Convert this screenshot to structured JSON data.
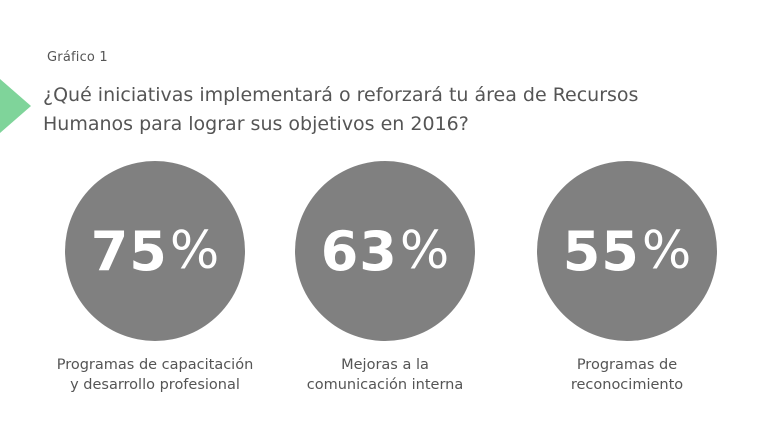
{
  "header": {
    "figure_label": "Gráfico 1",
    "question": "¿Qué iniciativas implementará o reforzará tu área de Recursos Humanos para lograr sus objetivos en 2016?"
  },
  "colors": {
    "circle": "#808080",
    "accent_arrow": "#7fd49a",
    "text": "#555555"
  },
  "chart_data": {
    "type": "bar",
    "title": "¿Qué iniciativas implementará o reforzará tu área de Recursos Humanos para lograr sus objetivos en 2016?",
    "categories": [
      "Programas de capacitación y desarrollo profesional",
      "Mejoras a la comunicación interna",
      "Programas de reconocimiento"
    ],
    "values": [
      75,
      63,
      55
    ],
    "unit": "%"
  },
  "stats": [
    {
      "value": "75",
      "unit": "%",
      "caption_line1": "Programas de capacitación",
      "caption_line2": "y desarrollo profesional"
    },
    {
      "value": "63",
      "unit": "%",
      "caption_line1": "Mejoras a la",
      "caption_line2": "comunicación interna"
    },
    {
      "value": "55",
      "unit": "%",
      "caption_line1": "Programas de",
      "caption_line2": "reconocimiento"
    }
  ]
}
